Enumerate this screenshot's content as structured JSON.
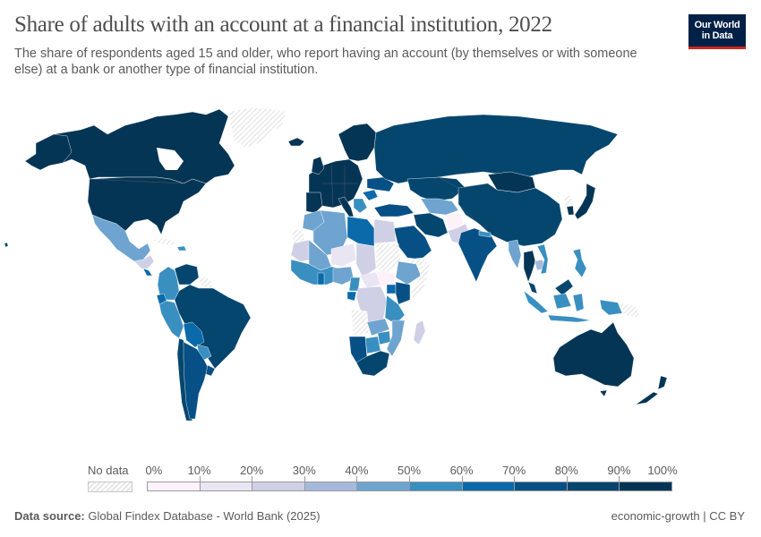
{
  "header": {
    "title": "Share of adults with an account at a financial institution, 2022",
    "subtitle": "The share of respondents aged 15 and older, who report having an account (by themselves or with someone else) at a bank or another type of financial institution.",
    "logo_line1": "Our World",
    "logo_line2": "in Data"
  },
  "legend": {
    "no_data_label": "No data",
    "ticks": [
      "0%",
      "10%",
      "20%",
      "30%",
      "40%",
      "50%",
      "60%",
      "70%",
      "80%",
      "90%",
      "100%"
    ],
    "bins": [
      {
        "range": "0-10%",
        "color": "#fdf2f9"
      },
      {
        "range": "10-20%",
        "color": "#e9e5f3"
      },
      {
        "range": "20-30%",
        "color": "#cfcfe6"
      },
      {
        "range": "30-40%",
        "color": "#a4b9db"
      },
      {
        "range": "40-50%",
        "color": "#6ea4cf"
      },
      {
        "range": "50-60%",
        "color": "#3a8fc1"
      },
      {
        "range": "60-70%",
        "color": "#0a6aaa"
      },
      {
        "range": "70-80%",
        "color": "#065086"
      },
      {
        "range": "80-90%",
        "color": "#05466f"
      },
      {
        "range": "90-100%",
        "color": "#053555"
      }
    ],
    "no_data_color": "hatched-grey"
  },
  "footer": {
    "source_label": "Data source:",
    "source_value": "Global Findex Database - World Bank (2025)",
    "right": "economic-growth | CC BY"
  },
  "chart_data": {
    "type": "choropleth",
    "title": "Share of adults with an account at a financial institution, 2022",
    "subtitle": "The share of respondents aged 15 and older, who report having an account (by themselves or with someone else) at a bank or another type of financial institution.",
    "year": 2022,
    "unit": "%",
    "scale": {
      "min": 0,
      "max": 100,
      "step": 10
    },
    "legend_position": "bottom",
    "regions_approx_bin": {
      "United States": "90-100%",
      "Canada": "90-100%",
      "Mexico": "40-50%",
      "Greenland": "No data",
      "Guatemala": "30-40%",
      "Honduras": "20-30%",
      "Costa Rica": "60-70%",
      "Colombia": "50-60%",
      "Venezuela": "80-90%",
      "Guyana/Suriname/French Guiana": "No data",
      "Ecuador": "60-70%",
      "Peru": "50-60%",
      "Brazil": "80-90%",
      "Bolivia": "60-70%",
      "Paraguay": "50-60%",
      "Chile": "80-90%",
      "Argentina": "70-80%",
      "Uruguay": "70-80%",
      "Western Europe": "90-100%",
      "Russia": "80-90%",
      "Turkey": "70-80%",
      "Romania": "60-70%",
      "Kazakhstan": "80-90%",
      "Mongolia": "90-100%",
      "China": "80-90%",
      "Japan": "90-100%",
      "South Korea": "90-100%",
      "North Korea": "No data",
      "India": "70-80%",
      "Pakistan": "20-30%",
      "Afghanistan": "0-10%",
      "Iran": "80-90%",
      "Saudi Arabia": "70-80%",
      "Yemen": "No data",
      "Uzbekistan/Tajikistan/Kyrgyzstan": "40-50%",
      "Nepal": "50-60%",
      "Myanmar": "40-50%",
      "Thailand": "90-100%",
      "Vietnam": "50-60%",
      "Cambodia": "30-40%",
      "Malaysia": "80-90%",
      "Indonesia": "50-60%",
      "Philippines": "50-60%",
      "Papua New Guinea": "No data",
      "Australia": "90-100%",
      "New Zealand": "90-100%",
      "Morocco": "40-50%",
      "Algeria": "40-50%",
      "Libya": "60-70%",
      "Egypt": "20-30%",
      "Western Sahara": "No data",
      "Mauritania": "20-30%",
      "Mali": "40-50%",
      "Niger": "10-20%",
      "Chad": "20-30%",
      "Sudan": "No data",
      "South Sudan": "0-10%",
      "Ethiopia": "40-50%",
      "Somalia": "No data",
      "Kenya": "70-80%",
      "Uganda": "60-70%",
      "Tanzania": "50-60%",
      "DR Congo": "20-30%",
      "Angola": "No data",
      "Zambia": "40-50%",
      "Mozambique": "40-50%",
      "Madagascar": "20-30%",
      "Namibia": "70-80%",
      "Botswana": "50-60%",
      "Zimbabwe": "50-60%",
      "South Africa": "80-90%",
      "Ghana": "60-70%",
      "Nigeria": "40-50%",
      "Cameroon": "50-60%",
      "Gabon": "60-70%"
    }
  }
}
